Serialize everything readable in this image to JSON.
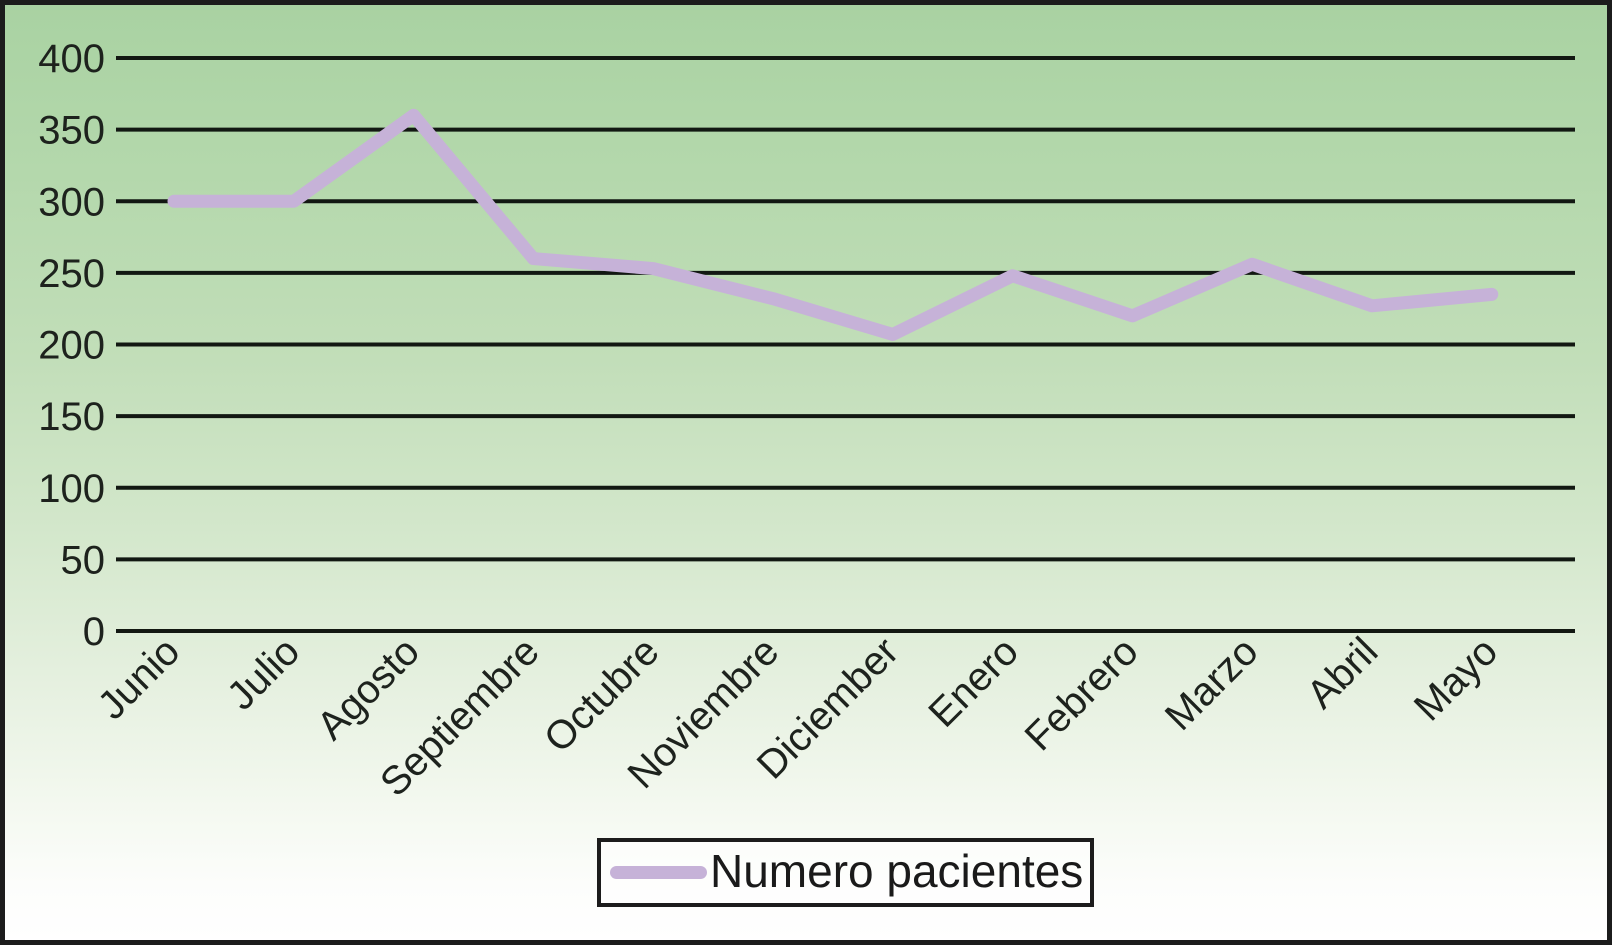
{
  "chart_data": {
    "type": "line",
    "title": "",
    "xlabel": "",
    "ylabel": "",
    "categories": [
      "Junio",
      "Julio",
      "Agosto",
      "Septiembre",
      "Octubre",
      "Noviembre",
      "Diciember",
      "Enero",
      "Febrero",
      "Marzo",
      "Abril",
      "Mayo"
    ],
    "series": [
      {
        "name": "Numero pacientes",
        "values": [
          300,
          300,
          360,
          260,
          253,
          232,
          207,
          248,
          220,
          256,
          227,
          235
        ],
        "color": "#c6b2d8"
      }
    ],
    "ylim": [
      0,
      400
    ],
    "ytick_step": 50,
    "yticks": [
      0,
      50,
      100,
      150,
      200,
      250,
      300,
      350,
      400
    ],
    "grid": "horizontal",
    "x_label_rotation_deg": -45,
    "legend_position": "bottom-center",
    "colors": {
      "line": "#c6b2d8",
      "grid": "#121812",
      "text": "#1d221d",
      "frame_border": "#1c1c1c",
      "background_top": "#a9d2a2",
      "background_bottom": "#ffffff"
    }
  },
  "legend": {
    "label": "Numero pacientes"
  }
}
